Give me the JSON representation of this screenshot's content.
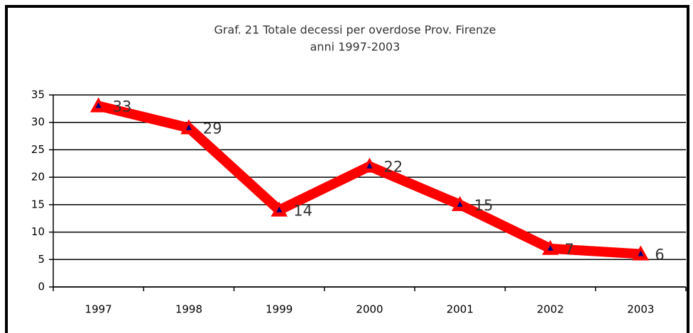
{
  "chart_data": {
    "type": "line",
    "title": "Graf. 21 Totale decessi per overdose Prov. Firenze",
    "subtitle": "anni 1997-2003",
    "categories": [
      "1997",
      "1998",
      "1999",
      "2000",
      "2001",
      "2002",
      "2003"
    ],
    "series": [
      {
        "name": "Totale decessi",
        "color": "#ff0000",
        "values": [
          33,
          29,
          14,
          22,
          15,
          7,
          6
        ]
      }
    ],
    "ylim": [
      0,
      35
    ],
    "yticks": [
      0,
      5,
      10,
      15,
      20,
      25,
      30,
      35
    ],
    "grid": true
  }
}
